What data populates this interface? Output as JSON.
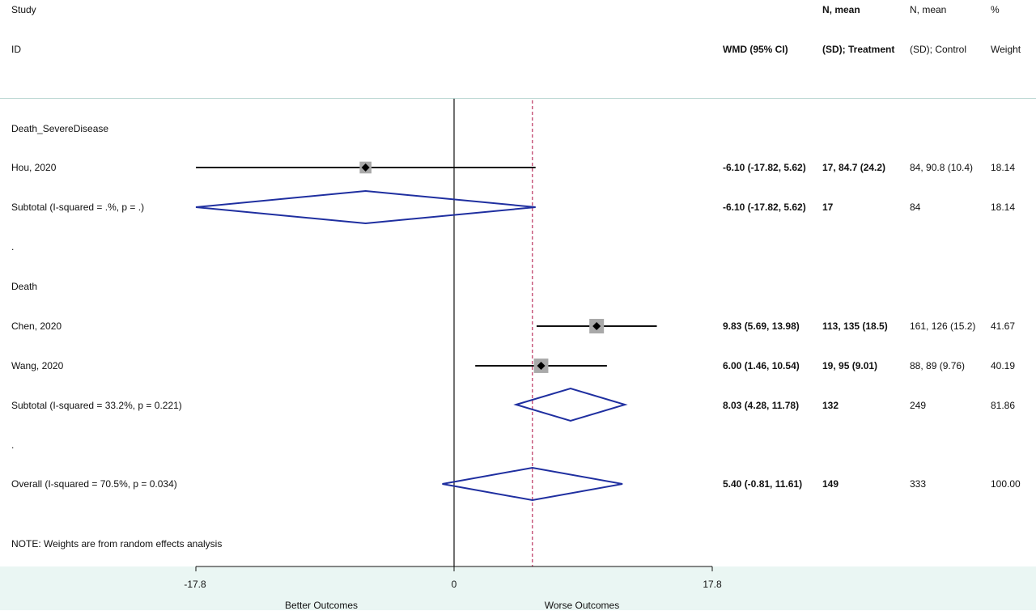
{
  "header": {
    "study": "Study",
    "id": "ID",
    "wmd": "WMD (95% CI)",
    "treat_line1": "N, mean",
    "treat_line2": "(SD); Treatment",
    "ctrl_line1": "N, mean",
    "ctrl_line2": "(SD); Control",
    "weight_line1": "%",
    "weight_line2": "Weight"
  },
  "rows": [
    {
      "label": "Death_SevereDisease",
      "type": "group"
    },
    {
      "label": "Hou, 2020",
      "type": "study",
      "wmd_text": "-6.10 (-17.82, 5.62)",
      "treatment": "17, 84.7 (24.2)",
      "control": "84, 90.8 (10.4)",
      "weight": "18.14"
    },
    {
      "label": "Subtotal  (I-squared = .%, p = .)",
      "type": "subtotal",
      "wmd_text": "-6.10 (-17.82, 5.62)",
      "treatment": "17",
      "control": "84",
      "weight": "18.14"
    },
    {
      "label": ".",
      "type": "spacer"
    },
    {
      "label": "Death",
      "type": "group"
    },
    {
      "label": "Chen, 2020",
      "type": "study",
      "wmd_text": "9.83 (5.69, 13.98)",
      "treatment": "113, 135 (18.5)",
      "control": "161, 126 (15.2)",
      "weight": "41.67"
    },
    {
      "label": "Wang, 2020",
      "type": "study",
      "wmd_text": "6.00 (1.46, 10.54)",
      "treatment": "19, 95 (9.01)",
      "control": "88, 89 (9.76)",
      "weight": "40.19"
    },
    {
      "label": "Subtotal  (I-squared = 33.2%, p = 0.221)",
      "type": "subtotal",
      "wmd_text": "8.03 (4.28, 11.78)",
      "treatment": "132",
      "control": "249",
      "weight": "81.86"
    },
    {
      "label": ".",
      "type": "spacer"
    },
    {
      "label": "Overall  (I-squared = 70.5%, p = 0.034)",
      "type": "overall",
      "wmd_text": "5.40 (-0.81, 11.61)",
      "treatment": "149",
      "control": "333",
      "weight": "100.00"
    }
  ],
  "note": "NOTE: Weights are from random effects analysis",
  "axis": {
    "ticks": [
      "-17.8",
      "0",
      "17.8"
    ],
    "left_caption": "Better Outcomes",
    "right_caption": "Worse Outcomes"
  },
  "chart_data": {
    "type": "forest",
    "measure": "WMD (95% CI)",
    "xlim": [
      -17.8,
      17.8
    ],
    "xticks": [
      -17.8,
      0,
      17.8
    ],
    "null_line": 0,
    "overall_line": 5.4,
    "studies": [
      {
        "name": "Hou, 2020",
        "group": "Death_SevereDisease",
        "estimate": -6.1,
        "lower": -17.82,
        "upper": 5.62,
        "weight": 18.14
      },
      {
        "name": "Chen, 2020",
        "group": "Death",
        "estimate": 9.83,
        "lower": 5.69,
        "upper": 13.98,
        "weight": 41.67
      },
      {
        "name": "Wang, 2020",
        "group": "Death",
        "estimate": 6.0,
        "lower": 1.46,
        "upper": 10.54,
        "weight": 40.19
      }
    ],
    "subtotals": [
      {
        "group": "Death_SevereDisease",
        "estimate": -6.1,
        "lower": -17.82,
        "upper": 5.62,
        "weight": 18.14
      },
      {
        "group": "Death",
        "estimate": 8.03,
        "lower": 4.28,
        "upper": 11.78,
        "weight": 81.86
      }
    ],
    "overall": {
      "estimate": 5.4,
      "lower": -0.81,
      "upper": 11.61,
      "weight": 100.0
    },
    "colors": {
      "ci_line": "#111111",
      "diamond": "#1f2fa0",
      "weight_box": "#a9a9a9",
      "overall_line": "#c0406a"
    }
  }
}
